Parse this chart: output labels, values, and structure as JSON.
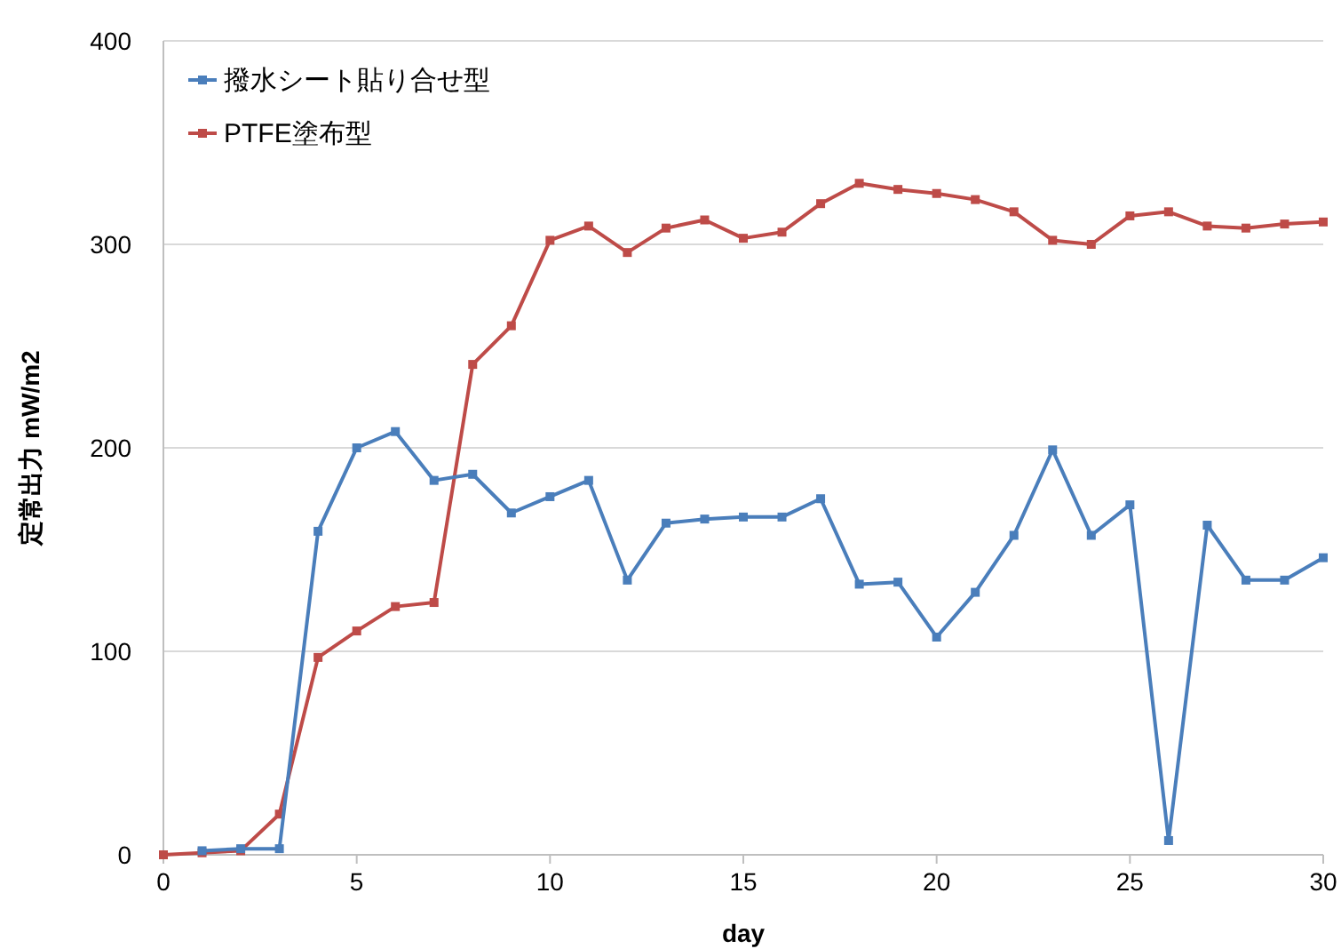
{
  "chart_data": {
    "type": "line",
    "xlabel": "day",
    "ylabel": "定常出力  mW/m2",
    "xlim": [
      0,
      30
    ],
    "xticks": [
      0,
      5,
      10,
      15,
      20,
      25,
      30
    ],
    "ylim": [
      0,
      400
    ],
    "yticks": [
      0,
      100,
      200,
      300,
      400
    ],
    "grid": "y",
    "legend": "top left",
    "marker": "square",
    "line_style": "solid",
    "series": [
      {
        "name": "撥水シート貼り合せ型",
        "color": "#4a7ebb",
        "x": [
          1,
          2,
          3,
          4,
          5,
          6,
          7,
          8,
          9,
          10,
          11,
          12,
          13,
          14,
          15,
          16,
          17,
          18,
          19,
          20,
          21,
          22,
          23,
          24,
          25,
          26,
          27,
          28,
          29,
          30
        ],
        "values": [
          2,
          3,
          3,
          159,
          200,
          208,
          184,
          187,
          168,
          176,
          184,
          135,
          163,
          165,
          166,
          166,
          175,
          133,
          134,
          107,
          129,
          157,
          199,
          157,
          172,
          7,
          162,
          135,
          135,
          146
        ]
      },
      {
        "name": "PTFE塗布型",
        "color": "#be4b48",
        "x": [
          0,
          1,
          2,
          3,
          4,
          5,
          6,
          7,
          8,
          9,
          10,
          11,
          12,
          13,
          14,
          15,
          16,
          17,
          18,
          19,
          20,
          21,
          22,
          23,
          24,
          25,
          26,
          27,
          28,
          29,
          30
        ],
        "values": [
          0,
          1,
          2,
          20,
          97,
          110,
          122,
          124,
          241,
          260,
          302,
          309,
          296,
          308,
          312,
          303,
          306,
          320,
          330,
          327,
          325,
          322,
          316,
          302,
          300,
          314,
          316,
          309,
          308,
          310,
          311
        ]
      }
    ]
  }
}
